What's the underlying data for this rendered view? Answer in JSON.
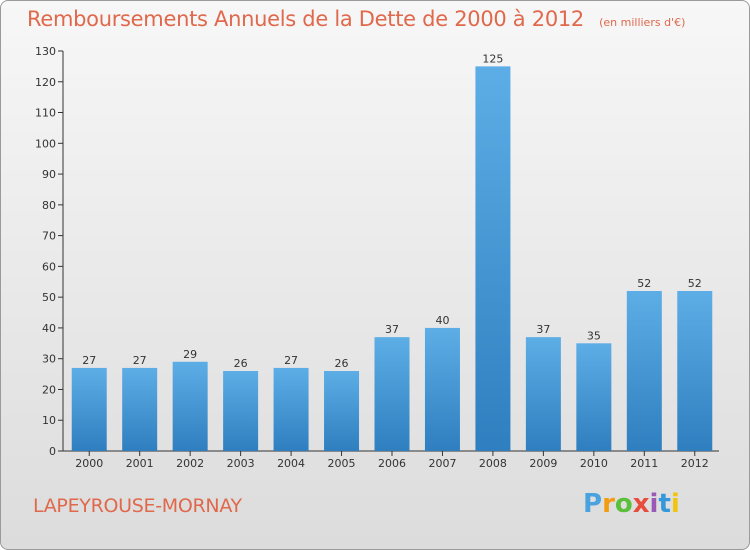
{
  "header": {
    "title": "Remboursements Annuels de la Dette de 2000 à 2012",
    "subtitle": "(en milliers d'€)"
  },
  "footer": {
    "town": "LAPEYROUSE-MORNAY",
    "brand": "Proxiti"
  },
  "colors": {
    "accent": "#e0684b",
    "bar_top": "#5dade6",
    "bar_bottom": "#2f7fc0"
  },
  "chart_data": {
    "type": "bar",
    "title": "Remboursements Annuels de la Dette de 2000 à 2012",
    "subtitle": "(en milliers d'€)",
    "categories": [
      "2000",
      "2001",
      "2002",
      "2003",
      "2004",
      "2005",
      "2006",
      "2007",
      "2008",
      "2009",
      "2010",
      "2011",
      "2012"
    ],
    "values": [
      27,
      27,
      29,
      26,
      27,
      26,
      37,
      40,
      125,
      37,
      35,
      52,
      52
    ],
    "ylim": [
      0,
      130
    ],
    "yticks": [
      0,
      10,
      20,
      30,
      40,
      50,
      60,
      70,
      80,
      90,
      100,
      110,
      120,
      130
    ],
    "grid": false,
    "legend": "none"
  }
}
